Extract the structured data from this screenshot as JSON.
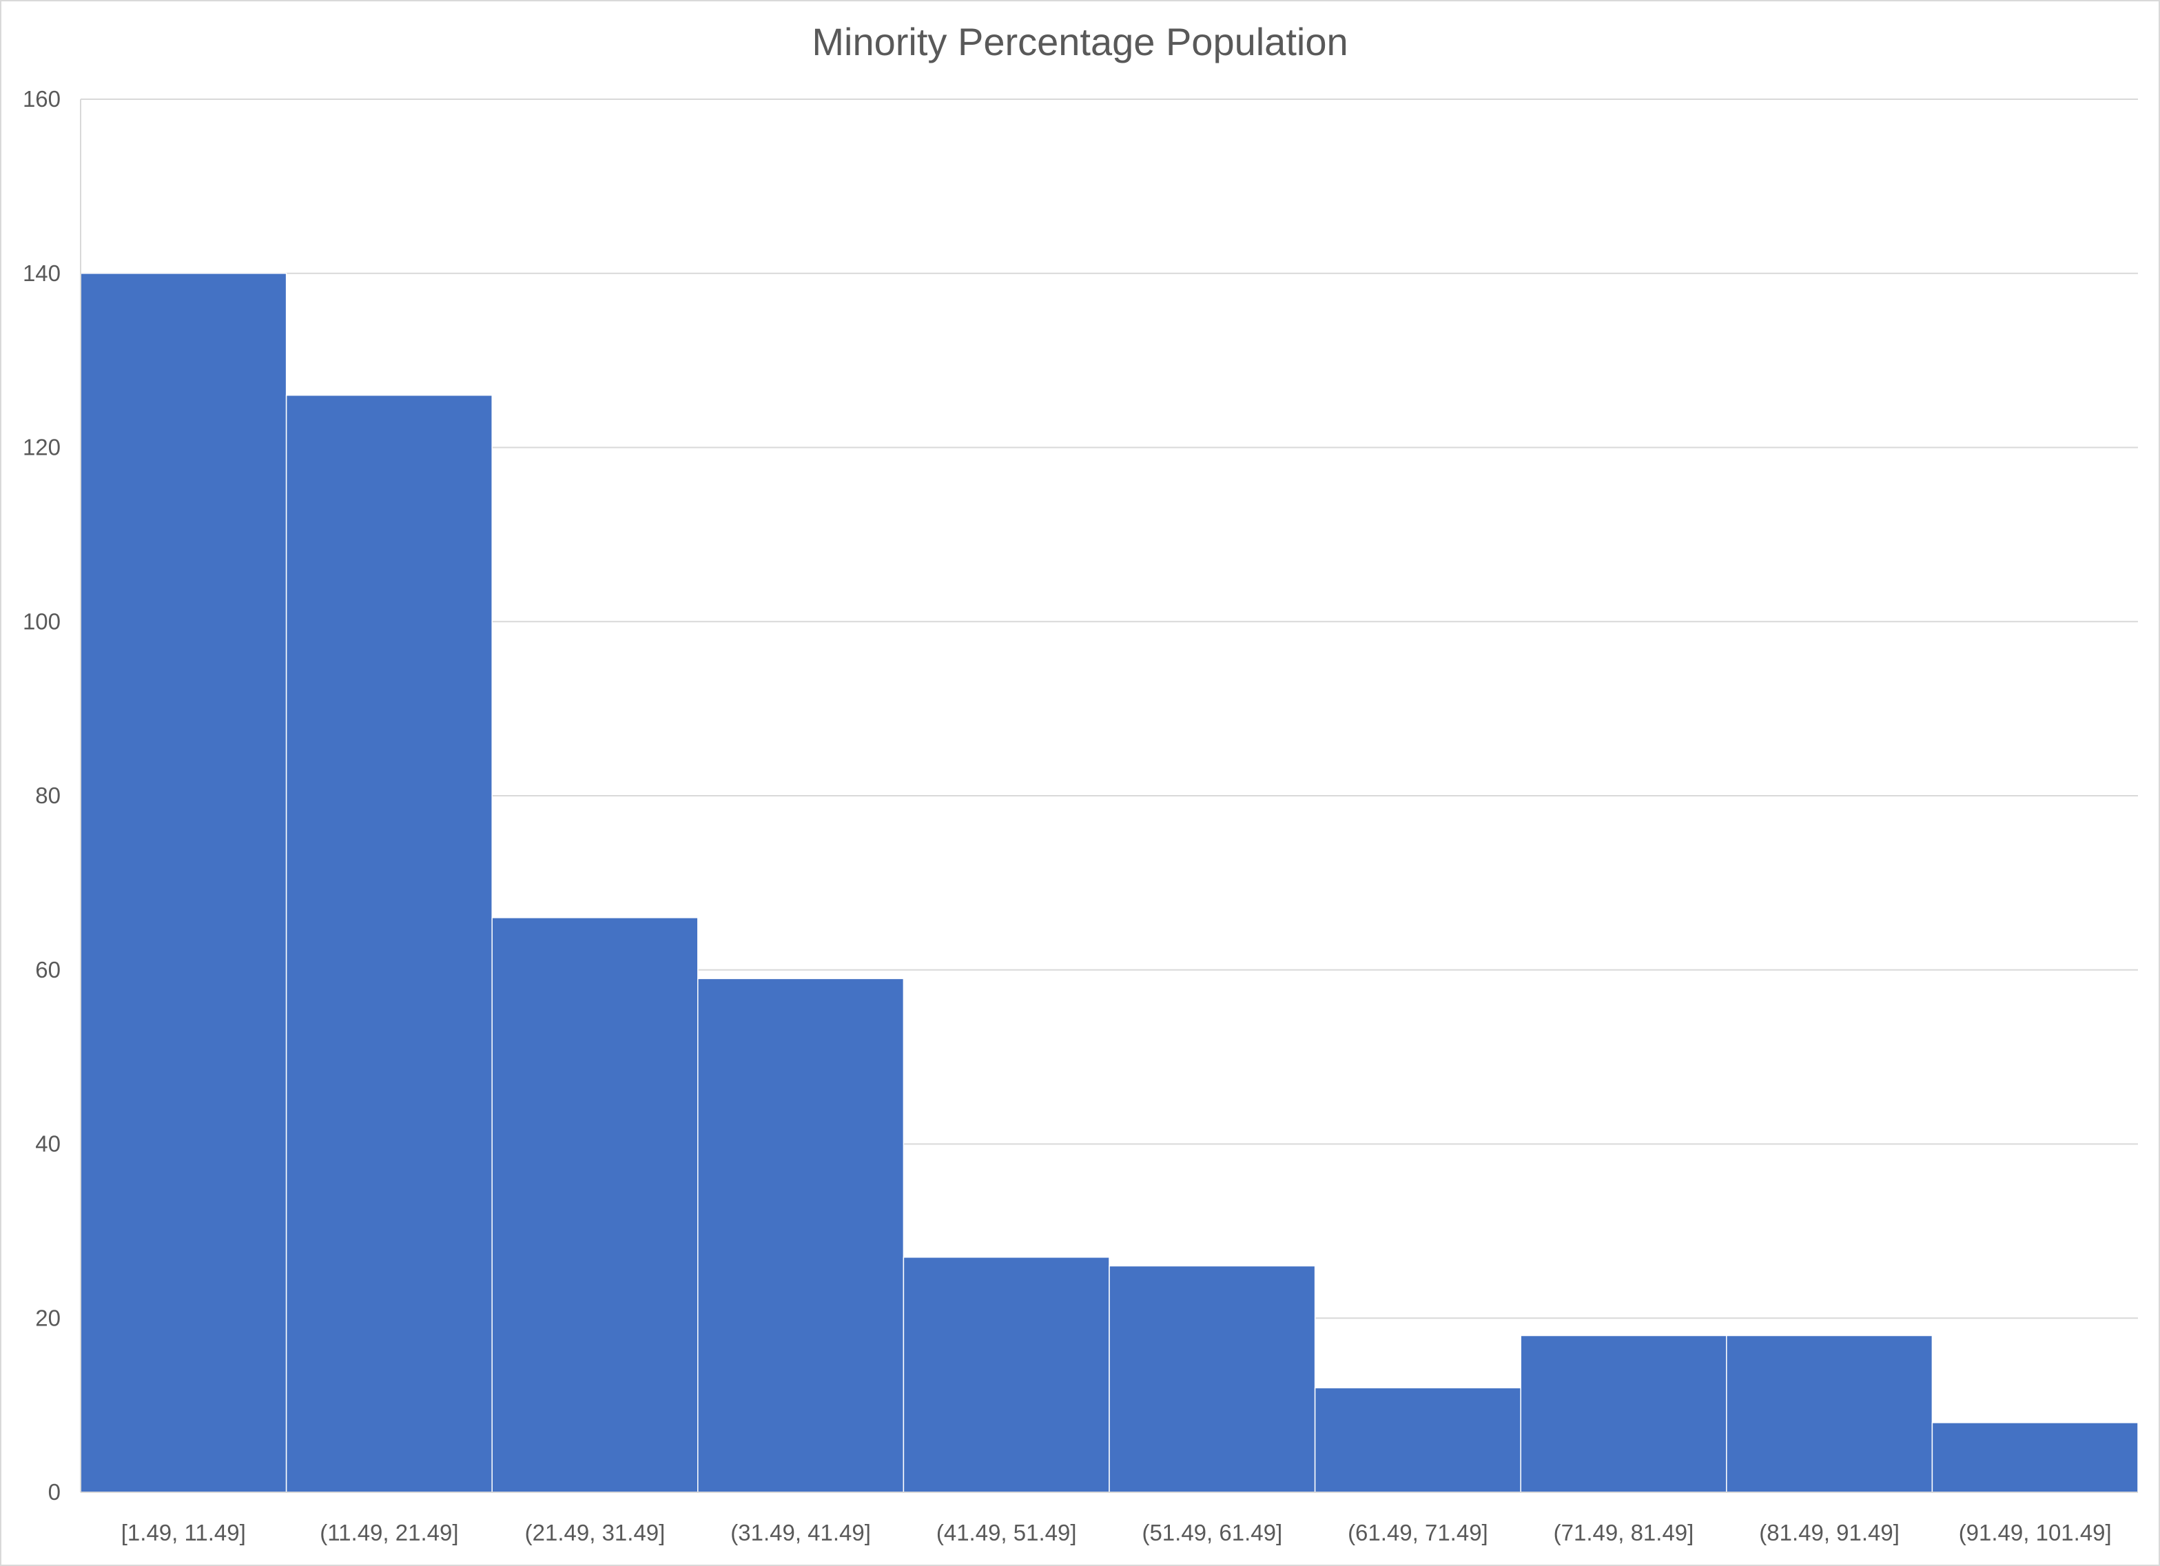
{
  "chart_data": {
    "type": "bar",
    "title": "Minority Percentage Population",
    "xlabel": "",
    "ylabel": "",
    "categories": [
      "[1.49, 11.49]",
      "(11.49, 21.49]",
      "(21.49, 31.49]",
      "(31.49, 41.49]",
      "(41.49, 51.49]",
      "(51.49, 61.49]",
      "(61.49, 71.49]",
      "(71.49, 81.49]",
      "(81.49, 91.49]",
      "(91.49, 101.49]"
    ],
    "values": [
      140,
      126,
      66,
      59,
      27,
      26,
      12,
      18,
      18,
      8
    ],
    "ylim": [
      0,
      160
    ],
    "yticks": [
      0,
      20,
      40,
      60,
      80,
      100,
      120,
      140,
      160
    ],
    "grid": true,
    "legend": "none",
    "colors": {
      "bar": "#4472c4",
      "grid": "#d9d9d9",
      "text": "#595959"
    }
  }
}
